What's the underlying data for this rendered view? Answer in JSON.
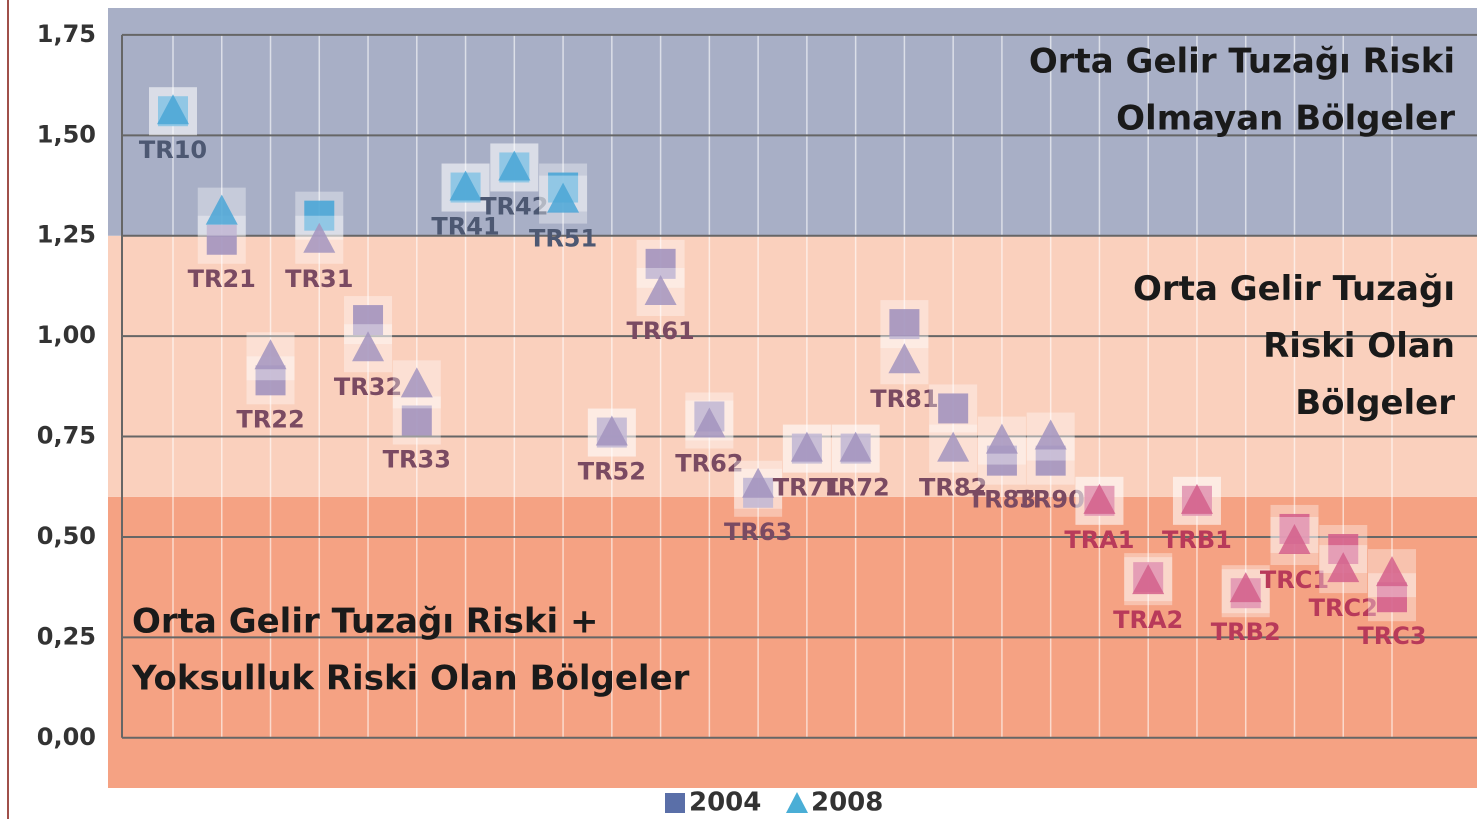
{
  "chart_data": {
    "type": "scatter",
    "categories": [
      "TR10",
      "TR21",
      "TR22",
      "TR31",
      "TR32",
      "TR33",
      "TR41",
      "TR42",
      "TR51",
      "TR52",
      "TR61",
      "TR62",
      "TR63",
      "TR71",
      "TR72",
      "TR81",
      "TR82",
      "TR83",
      "TR90",
      "TRA1",
      "TRA2",
      "TRB1",
      "TRB2",
      "TRC1",
      "TRC2",
      "TRC3"
    ],
    "series": [
      {
        "name": "2004",
        "marker": "square",
        "color": "#5a6fa8",
        "values": [
          1.56,
          1.24,
          0.89,
          1.3,
          1.04,
          0.79,
          1.37,
          1.42,
          1.37,
          0.76,
          1.18,
          0.8,
          0.61,
          0.72,
          0.72,
          1.03,
          0.82,
          0.69,
          0.69,
          0.59,
          0.4,
          0.59,
          0.36,
          0.52,
          0.47,
          0.35
        ]
      },
      {
        "name": "2008",
        "marker": "triangle",
        "color": "#4aaed6",
        "values": [
          1.56,
          1.31,
          0.95,
          1.24,
          0.97,
          0.88,
          1.37,
          1.42,
          1.34,
          0.76,
          1.11,
          0.78,
          0.63,
          0.72,
          0.72,
          0.94,
          0.72,
          0.74,
          0.75,
          0.59,
          0.39,
          0.59,
          0.37,
          0.49,
          0.42,
          0.41
        ]
      }
    ],
    "ylim": [
      -0.125,
      1.817
    ],
    "yticks": [
      {
        "value": 0,
        "label": "0,00"
      },
      {
        "value": 0.25,
        "label": "0,25"
      },
      {
        "value": 0.5,
        "label": "0,50"
      },
      {
        "value": 0.75,
        "label": "0,75"
      },
      {
        "value": 1,
        "label": "1,00"
      },
      {
        "value": 1.25,
        "label": "1,25"
      },
      {
        "value": 1.5,
        "label": "1,50"
      },
      {
        "value": 1.75,
        "label": "1,75"
      }
    ],
    "grid": true,
    "legend": "bottom",
    "zones": [
      {
        "from": -0.125,
        "to": 0.6,
        "color": "#f5a283",
        "marker_color": "#d4608c",
        "label_color": "#b83a5a",
        "align": "left",
        "lines": [
          "Orta Gelir Tuzağı Riski +",
          "Yoksulluk Riski Olan Bölgeler"
        ]
      },
      {
        "from": 0.6,
        "to": 1.25,
        "color": "#fad0bd",
        "marker_color": "#a394be",
        "label_color": "#7a4a62",
        "align": "right",
        "lines": [
          "Orta Gelir Tuzağı",
          "Riski Olan",
          "Bölgeler"
        ]
      },
      {
        "from": 1.25,
        "to": 1.817,
        "color": "#a8afc6",
        "marker_color": "#4aa6d6",
        "label_color": "#4d5872",
        "align": "right",
        "lines": [
          "Orta Gelir Tuzağı Riski",
          "Olmayan Bölgeler"
        ]
      }
    ]
  }
}
